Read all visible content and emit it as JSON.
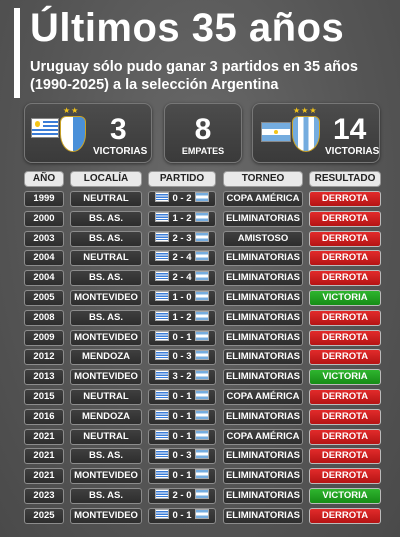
{
  "title": "Últimos 35 años",
  "subtitle": "Uruguay sólo pudo ganar 3 partidos en 35 años (1990-2025) a la selección Argentina",
  "summary": {
    "uruguay": {
      "count": "3",
      "label": "VICTORIAS",
      "flag_icon": "uruguay-flag",
      "crest_icon": "auf-crest"
    },
    "draws": {
      "count": "8",
      "label": "EMPATES"
    },
    "argentina": {
      "count": "14",
      "label": "VICTORIAS",
      "flag_icon": "argentina-flag",
      "crest_icon": "afa-crest"
    }
  },
  "columns": {
    "year": "AÑO",
    "venue": "LOCALÍA",
    "match": "PARTIDO",
    "tournament": "TORNEO",
    "result": "RESULTADO"
  },
  "matches": [
    {
      "year": "1999",
      "venue": "NEUTRAL",
      "score": "0 - 2",
      "tournament": "COPA AMÉRICA",
      "result": "DERROTA"
    },
    {
      "year": "2000",
      "venue": "BS. AS.",
      "score": "1 - 2",
      "tournament": "ELIMINATORIAS",
      "result": "DERROTA"
    },
    {
      "year": "2003",
      "venue": "BS. AS.",
      "score": "2 - 3",
      "tournament": "AMISTOSO",
      "result": "DERROTA"
    },
    {
      "year": "2004",
      "venue": "NEUTRAL",
      "score": "2 - 4",
      "tournament": "ELIMINATORIAS",
      "result": "DERROTA"
    },
    {
      "year": "2004",
      "venue": "BS. AS.",
      "score": "2 - 4",
      "tournament": "ELIMINATORIAS",
      "result": "DERROTA"
    },
    {
      "year": "2005",
      "venue": "MONTEVIDEO",
      "score": "1 - 0",
      "tournament": "ELIMINATORIAS",
      "result": "VICTORIA"
    },
    {
      "year": "2008",
      "venue": "BS. AS.",
      "score": "1 - 2",
      "tournament": "ELIMINATORIAS",
      "result": "DERROTA"
    },
    {
      "year": "2009",
      "venue": "MONTEVIDEO",
      "score": "0 - 1",
      "tournament": "ELIMINATORIAS",
      "result": "DERROTA"
    },
    {
      "year": "2012",
      "venue": "MENDOZA",
      "score": "0 - 3",
      "tournament": "ELIMINATORIAS",
      "result": "DERROTA"
    },
    {
      "year": "2013",
      "venue": "MONTEVIDEO",
      "score": "3 - 2",
      "tournament": "ELIMINATORIAS",
      "result": "VICTORIA"
    },
    {
      "year": "2015",
      "venue": "NEUTRAL",
      "score": "0 - 1",
      "tournament": "COPA AMÉRICA",
      "result": "DERROTA"
    },
    {
      "year": "2016",
      "venue": "MENDOZA",
      "score": "0 - 1",
      "tournament": "ELIMINATORIAS",
      "result": "DERROTA"
    },
    {
      "year": "2021",
      "venue": "NEUTRAL",
      "score": "0 - 1",
      "tournament": "COPA AMÉRICA",
      "result": "DERROTA"
    },
    {
      "year": "2021",
      "venue": "BS. AS.",
      "score": "0 - 3",
      "tournament": "ELIMINATORIAS",
      "result": "DERROTA"
    },
    {
      "year": "2021",
      "venue": "MONTEVIDEO",
      "score": "0 - 1",
      "tournament": "ELIMINATORIAS",
      "result": "DERROTA"
    },
    {
      "year": "2023",
      "venue": "BS. AS.",
      "score": "2 - 0",
      "tournament": "ELIMINATORIAS",
      "result": "VICTORIA"
    },
    {
      "year": "2025",
      "venue": "MONTEVIDEO",
      "score": "0 - 1",
      "tournament": "ELIMINATORIAS",
      "result": "DERROTA"
    }
  ],
  "colors": {
    "loss": "#d11f1f",
    "win": "#22a522",
    "background": "#5c5c5c"
  }
}
